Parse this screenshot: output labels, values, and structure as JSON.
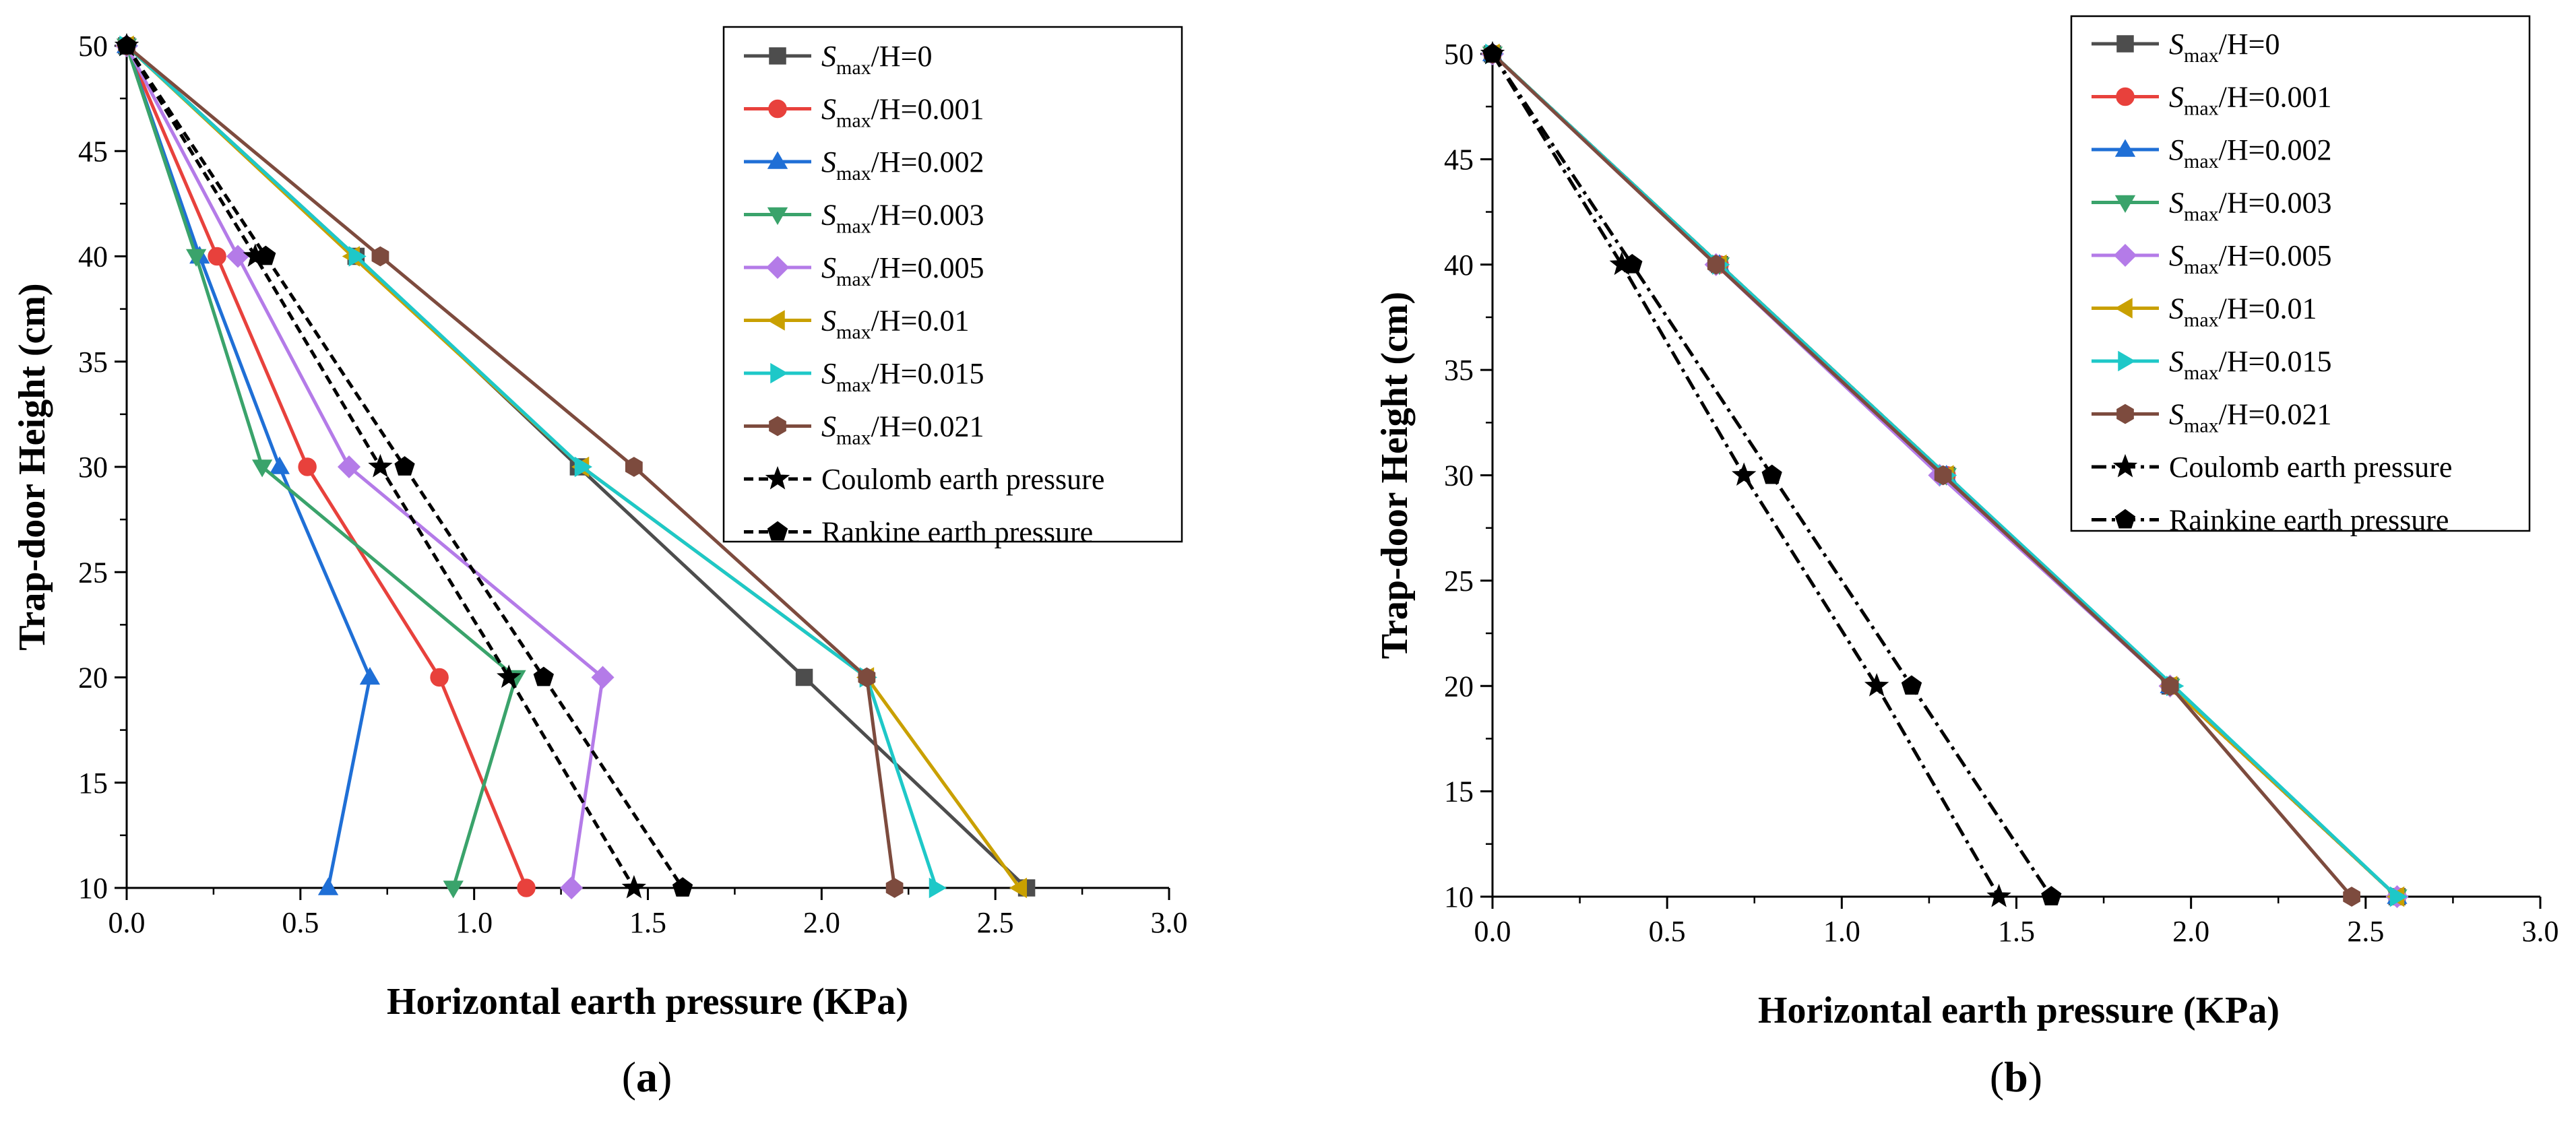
{
  "chart_data": [
    {
      "type": "line",
      "panel_label": "a",
      "xlabel": "Horizontal earth pressure (KPa)",
      "ylabel": "Trap-door Height (cm)",
      "xlim": [
        0.0,
        3.0
      ],
      "ylim": [
        10,
        50
      ],
      "xticks": [
        "0.0",
        "0.5",
        "1.0",
        "1.5",
        "2.0",
        "2.5",
        "3.0"
      ],
      "yticks": [
        "10",
        "15",
        "20",
        "25",
        "30",
        "35",
        "40",
        "45",
        "50"
      ],
      "series": [
        {
          "name": "Smax/H=0",
          "label_main": "S",
          "label_sub": "max",
          "label_rest": "/H=0.",
          "label_value": "0",
          "color": "#4d4d4d",
          "marker": "square",
          "dash": "solid",
          "x": [
            0.0,
            0.66,
            1.3,
            1.95,
            2.59
          ],
          "y": [
            50,
            40,
            30,
            20,
            10
          ]
        },
        {
          "name": "Smax/H=0.001",
          "label_main": "S",
          "label_sub": "max",
          "label_rest": "/H=",
          "label_value": "0.001",
          "color": "#e8413c",
          "marker": "circle",
          "dash": "solid",
          "x": [
            0.0,
            0.26,
            0.52,
            0.9,
            1.15
          ],
          "y": [
            50,
            40,
            30,
            20,
            10
          ]
        },
        {
          "name": "Smax/H=0.002",
          "label_main": "S",
          "label_sub": "max",
          "label_rest": "/H=",
          "label_value": "0.002",
          "color": "#1f6fd6",
          "marker": "triangle-up",
          "dash": "solid",
          "x": [
            0.0,
            0.21,
            0.44,
            0.7,
            0.58
          ],
          "y": [
            50,
            40,
            30,
            20,
            10
          ]
        },
        {
          "name": "Smax/H=0.003",
          "label_main": "S",
          "label_sub": "max",
          "label_rest": "/H=",
          "label_value": "0.003",
          "color": "#3aa36b",
          "marker": "triangle-down",
          "dash": "solid",
          "x": [
            0.0,
            0.2,
            0.39,
            1.12,
            0.94
          ],
          "y": [
            50,
            40,
            30,
            20,
            10
          ]
        },
        {
          "name": "Smax/H=0.005",
          "label_main": "S",
          "label_sub": "max",
          "label_rest": "/H=",
          "label_value": "0.005",
          "color": "#b47be8",
          "marker": "diamond",
          "dash": "solid",
          "x": [
            0.0,
            0.32,
            0.64,
            1.37,
            1.28
          ],
          "y": [
            50,
            40,
            30,
            20,
            10
          ]
        },
        {
          "name": "Smax/H=0.01",
          "label_main": "S",
          "label_sub": "max",
          "label_rest": "/H=",
          "label_value": "0.01",
          "color": "#c9a000",
          "marker": "triangle-left",
          "dash": "solid",
          "x": [
            0.0,
            0.65,
            1.31,
            2.13,
            2.57
          ],
          "y": [
            50,
            40,
            30,
            20,
            10
          ]
        },
        {
          "name": "Smax/H=0.015",
          "label_main": "S",
          "label_sub": "max",
          "label_rest": "/H=",
          "label_value": "0.015",
          "color": "#1ec8c8",
          "marker": "triangle-right",
          "dash": "solid",
          "x": [
            0.0,
            0.66,
            1.31,
            2.13,
            2.33
          ],
          "y": [
            50,
            40,
            30,
            20,
            10
          ]
        },
        {
          "name": "Smax/H=0.021",
          "label_main": "S",
          "label_sub": "max",
          "label_rest": "/H=",
          "label_value": "0.021",
          "color": "#7d4b3e",
          "marker": "hexagon",
          "dash": "solid",
          "x": [
            0.0,
            0.73,
            1.46,
            2.13,
            2.21
          ],
          "y": [
            50,
            40,
            30,
            20,
            10
          ]
        },
        {
          "name": "Coulomb earth pressure",
          "label_plain": "Coulomb earth pressure",
          "color": "#000000",
          "marker": "star",
          "dash": "dashed",
          "x": [
            0.0,
            0.37,
            0.73,
            1.1,
            1.46
          ],
          "y": [
            50,
            40,
            30,
            20,
            10
          ]
        },
        {
          "name": "Rankine earth pressure",
          "label_plain": "Rankine earth pressure",
          "color": "#000000",
          "marker": "pentagon",
          "dash": "dashed",
          "x": [
            0.0,
            0.4,
            0.8,
            1.2,
            1.6
          ],
          "y": [
            50,
            40,
            30,
            20,
            10
          ]
        }
      ]
    },
    {
      "type": "line",
      "panel_label": "b",
      "xlabel": "Horizontal earth pressure (KPa)",
      "ylabel": "Trap-door Height (cm)",
      "xlim": [
        0.0,
        3.0
      ],
      "ylim": [
        10,
        50
      ],
      "xticks": [
        "0.0",
        "0.5",
        "1.0",
        "1.5",
        "2.0",
        "2.5",
        "3.0"
      ],
      "yticks": [
        "10",
        "15",
        "20",
        "25",
        "30",
        "35",
        "40",
        "45",
        "50"
      ],
      "series": [
        {
          "name": "Smax/H=0",
          "label_main": "S",
          "label_sub": "max",
          "label_rest": "/H=",
          "label_value": "0",
          "color": "#4d4d4d",
          "marker": "square",
          "dash": "solid",
          "x": [
            0.0,
            0.65,
            1.3,
            1.94,
            2.59
          ],
          "y": [
            50,
            40,
            30,
            20,
            10
          ]
        },
        {
          "name": "Smax/H=0.001",
          "label_main": "S",
          "label_sub": "max",
          "label_rest": "/H=",
          "label_value": "0.001",
          "color": "#e8413c",
          "marker": "circle",
          "dash": "solid",
          "x": [
            0.0,
            0.65,
            1.3,
            1.94,
            2.59
          ],
          "y": [
            50,
            40,
            30,
            20,
            10
          ]
        },
        {
          "name": "Smax/H=0.002",
          "label_main": "S",
          "label_sub": "max",
          "label_rest": "/H=",
          "label_value": "0.002",
          "color": "#1f6fd6",
          "marker": "triangle-up",
          "dash": "solid",
          "x": [
            0.0,
            0.65,
            1.3,
            1.94,
            2.59
          ],
          "y": [
            50,
            40,
            30,
            20,
            10
          ]
        },
        {
          "name": "Smax/H=0.003",
          "label_main": "S",
          "label_sub": "max",
          "label_rest": "/H=",
          "label_value": "0.003",
          "color": "#3aa36b",
          "marker": "triangle-down",
          "dash": "solid",
          "x": [
            0.0,
            0.65,
            1.3,
            1.94,
            2.59
          ],
          "y": [
            50,
            40,
            30,
            20,
            10
          ]
        },
        {
          "name": "Smax/H=0.005",
          "label_main": "S",
          "label_sub": "max",
          "label_rest": "/H=",
          "label_value": "0.005",
          "color": "#b47be8",
          "marker": "diamond",
          "dash": "solid",
          "x": [
            0.0,
            0.64,
            1.28,
            1.94,
            2.59
          ],
          "y": [
            50,
            40,
            30,
            20,
            10
          ]
        },
        {
          "name": "Smax/H=0.01",
          "label_main": "S",
          "label_sub": "max",
          "label_rest": "/H=",
          "label_value": "0.01",
          "color": "#c9a000",
          "marker": "triangle-left",
          "dash": "solid",
          "x": [
            0.0,
            0.65,
            1.3,
            1.94,
            2.59
          ],
          "y": [
            50,
            40,
            30,
            20,
            10
          ]
        },
        {
          "name": "Smax/H=0.015",
          "label_main": "S",
          "label_sub": "max",
          "label_rest": "/H=",
          "label_value": "0.015",
          "color": "#1ec8c8",
          "marker": "triangle-right",
          "dash": "solid",
          "x": [
            0.0,
            0.65,
            1.3,
            1.95,
            2.59
          ],
          "y": [
            50,
            40,
            30,
            20,
            10
          ]
        },
        {
          "name": "Smax/H=0.021",
          "label_main": "S",
          "label_sub": "max",
          "label_rest": "/H=",
          "label_value": "0.021",
          "color": "#7d4b3e",
          "marker": "hexagon",
          "dash": "solid",
          "x": [
            0.0,
            0.64,
            1.29,
            1.94,
            2.46
          ],
          "y": [
            50,
            40,
            30,
            20,
            10
          ]
        },
        {
          "name": "Coulomb earth pressure",
          "label_plain": "Coulomb earth pressure",
          "color": "#000000",
          "marker": "star",
          "dash": "dashdot",
          "x": [
            0.0,
            0.37,
            0.72,
            1.1,
            1.45
          ],
          "y": [
            50,
            40,
            30,
            20,
            10
          ]
        },
        {
          "name": "Rainkine earth pressure",
          "label_plain": "Rainkine earth pressure",
          "color": "#000000",
          "marker": "pentagon",
          "dash": "dashdot",
          "x": [
            0.0,
            0.4,
            0.8,
            1.2,
            1.6
          ],
          "y": [
            50,
            40,
            30,
            20,
            10
          ]
        }
      ]
    }
  ]
}
